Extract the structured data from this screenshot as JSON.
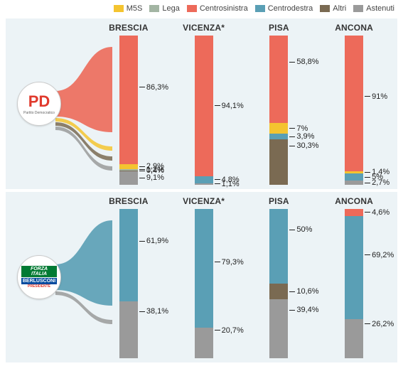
{
  "legend": [
    {
      "label": "M5S",
      "color": "#f4c430"
    },
    {
      "label": "Lega",
      "color": "#a3b5a3"
    },
    {
      "label": "Centrosinistra",
      "color": "#ed6a5a"
    },
    {
      "label": "Centrodestra",
      "color": "#5a9fb5"
    },
    {
      "label": "Altri",
      "color": "#7a6a52"
    },
    {
      "label": "Astenuti",
      "color": "#9a9a9a"
    }
  ],
  "colors": {
    "M5S": "#f4c430",
    "Lega": "#a3b5a3",
    "Centrosinistra": "#ed6a5a",
    "Centrodestra": "#5a9fb5",
    "Altri": "#7a6a52",
    "Astenuti": "#9a9a9a",
    "panel_bg": "#ecf3f6"
  },
  "panels": [
    {
      "party": "PD",
      "logo": "pd",
      "flow_color": "#ed6a5a",
      "flow_minor": [
        "#f4c430",
        "#7a6a52",
        "#9a9a9a"
      ],
      "cities": [
        {
          "name": "BRESCIA",
          "segs": [
            {
              "cat": "Centrosinistra",
              "v": 86.3,
              "label": "86,3%",
              "labelTop": 40
            },
            {
              "cat": "M5S",
              "v": 2.9,
              "label": "2,9%"
            },
            {
              "cat": "Lega",
              "v": 1.2,
              "label": "1,2%"
            },
            {
              "cat": "Altri",
              "v": 0.4,
              "label": "0,4%"
            },
            {
              "cat": "Astenuti",
              "v": 9.1,
              "label": "9,1%"
            }
          ]
        },
        {
          "name": "VICENZA*",
          "segs": [
            {
              "cat": "Centrosinistra",
              "v": 94.1,
              "label": "94,1%",
              "labelTop": 50
            },
            {
              "cat": "Centrodestra",
              "v": 4.8,
              "label": "4,8%"
            },
            {
              "cat": "Astenuti",
              "v": 1.1,
              "label": "1,1%"
            }
          ]
        },
        {
          "name": "PISA",
          "segs": [
            {
              "cat": "Centrosinistra",
              "v": 58.8,
              "label": "58,8%",
              "labelTop": 30
            },
            {
              "cat": "M5S",
              "v": 7.0,
              "label": "7%"
            },
            {
              "cat": "Centrodestra",
              "v": 3.9,
              "label": "3,9%"
            },
            {
              "cat": "Altri",
              "v": 30.3,
              "label": "30,3%",
              "labelTop": 14
            }
          ]
        },
        {
          "name": "ANCONA",
          "segs": [
            {
              "cat": "Centrosinistra",
              "v": 91.0,
              "label": "91%",
              "labelTop": 45
            },
            {
              "cat": "M5S",
              "v": 1.4,
              "label": "1,4%"
            },
            {
              "cat": "Centrodestra",
              "v": 5.0,
              "label": "5%"
            },
            {
              "cat": "Astenuti",
              "v": 2.7,
              "label": "2,7%"
            }
          ]
        }
      ]
    },
    {
      "party": "Forza Italia",
      "logo": "fi",
      "flow_color": "#5a9fb5",
      "flow_minor": [
        "#9a9a9a"
      ],
      "cities": [
        {
          "name": "BRESCIA",
          "segs": [
            {
              "cat": "Centrodestra",
              "v": 61.9,
              "label": "61,9%",
              "labelTop": 35
            },
            {
              "cat": "Astenuti",
              "v": 38.1,
              "label": "38,1%",
              "labelTop": 18
            }
          ]
        },
        {
          "name": "VICENZA*",
          "segs": [
            {
              "cat": "Centrodestra",
              "v": 79.3,
              "label": "79,3%",
              "labelTop": 45
            },
            {
              "cat": "Astenuti",
              "v": 20.7,
              "label": "20,7%",
              "labelTop": 10
            }
          ]
        },
        {
          "name": "PISA",
          "segs": [
            {
              "cat": "Centrodestra",
              "v": 50.0,
              "label": "50%",
              "labelTop": 28
            },
            {
              "cat": "Altri",
              "v": 10.6,
              "label": "10,6%"
            },
            {
              "cat": "Astenuti",
              "v": 39.4,
              "label": "39,4%",
              "labelTop": 18
            }
          ]
        },
        {
          "name": "ANCONA",
          "segs": [
            {
              "cat": "Centrosinistra",
              "v": 4.6,
              "label": "4,6%"
            },
            {
              "cat": "Centrodestra",
              "v": 69.2,
              "label": "69,2%",
              "labelTop": 38
            },
            {
              "cat": "Astenuti",
              "v": 26.2,
              "label": "26,2%",
              "labelTop": 12
            }
          ]
        }
      ]
    }
  ]
}
